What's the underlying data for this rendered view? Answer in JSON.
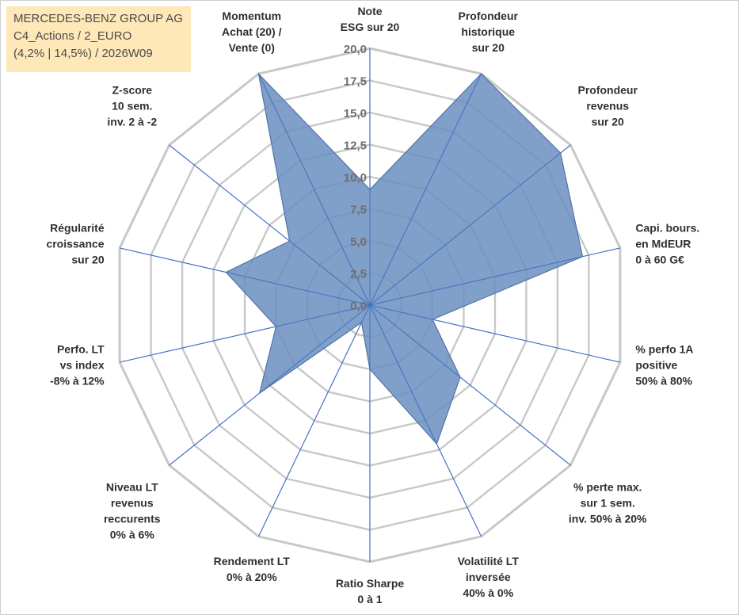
{
  "header": {
    "company": "MERCEDES-BENZ GROUP AG",
    "fund_line": "C4_Actions / 2_EURO",
    "stats_line": "(4,2% | 14,5%) / 2026W09"
  },
  "colors": {
    "fill": "#6b8fbf",
    "outline": "#4f74a8",
    "spoke": "#4472c4",
    "grid": "#c8c8c8",
    "title_bg": "#ffe8b8"
  },
  "chart_data": {
    "type": "radar",
    "range": [
      0,
      20
    ],
    "ticks": [
      "0,0",
      "2,5",
      "5,0",
      "7,5",
      "10,0",
      "12,5",
      "15,0",
      "17,5",
      "20,0"
    ],
    "grid": true,
    "axes": [
      {
        "label": [
          "Note",
          "ESG sur 20"
        ],
        "value": 9.0
      },
      {
        "label": [
          "Profondeur",
          "historique",
          "sur 20"
        ],
        "value": 20.0
      },
      {
        "label": [
          "Profondeur",
          "revenus",
          "sur 20"
        ],
        "value": 19.0
      },
      {
        "label": [
          "Capi. bours.",
          "en MdEUR",
          "0 à 60 G€"
        ],
        "value": 17.0
      },
      {
        "label": [
          "% perfo 1A",
          "positive",
          "50% à 80%"
        ],
        "value": 5.0
      },
      {
        "label": [
          "% perte max.",
          "sur 1 sem.",
          "inv. 50% à 20%"
        ],
        "value": 9.0
      },
      {
        "label": [
          "Volatilité LT",
          "inversée",
          "40% à 0%"
        ],
        "value": 12.0
      },
      {
        "label": [
          "Ratio Sharpe",
          "0 à 1"
        ],
        "value": 5.0
      },
      {
        "label": [
          "Rendement LT",
          "0% à 20%"
        ],
        "value": 1.5
      },
      {
        "label": [
          "Niveau LT",
          "revenus",
          "reccurents",
          "0% à 6%"
        ],
        "value": 11.0
      },
      {
        "label": [
          "Perfo. LT",
          "vs index",
          "-8% à 12%"
        ],
        "value": 7.5
      },
      {
        "label": [
          "Régularité",
          "croissance",
          "sur 20"
        ],
        "value": 11.5
      },
      {
        "label": [
          "Z-score",
          "10 sem.",
          "inv. 2 à -2"
        ],
        "value": 8.0
      },
      {
        "label": [
          "Momentum",
          "Achat (20) /",
          "Vente (0)"
        ],
        "value": 20.0
      }
    ]
  }
}
